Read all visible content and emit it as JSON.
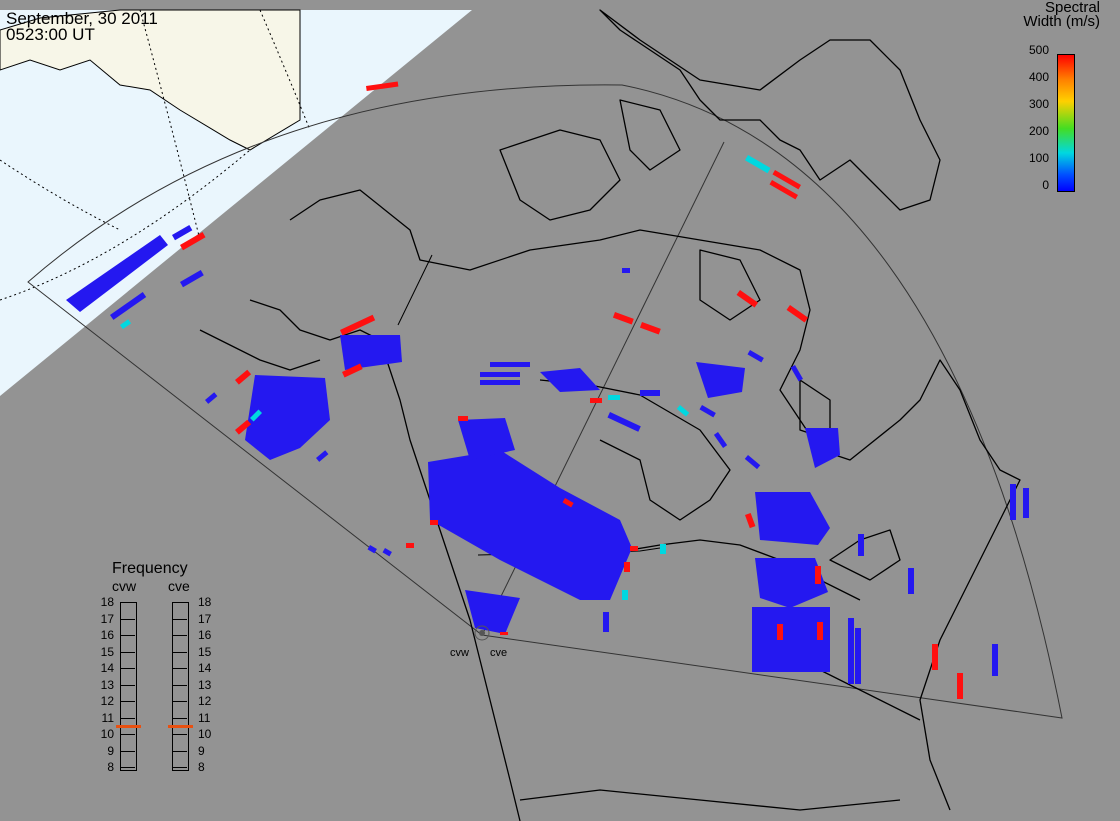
{
  "header": {
    "date": "September, 30 2011",
    "time": "0523:00 UT"
  },
  "colorbar": {
    "title_line1": "Spectral",
    "title_line2": "Width (m/s)",
    "ticks": [
      "500",
      "400",
      "300",
      "200",
      "100",
      "0"
    ],
    "range": [
      0,
      500
    ],
    "colors": [
      "#0000ff",
      "#00d8e0",
      "#44dd22",
      "#ffd000",
      "#ff8000",
      "#ff0000"
    ]
  },
  "frequency": {
    "title": "Frequency",
    "radars": [
      {
        "name": "cvw",
        "value_mhz": 10.5
      },
      {
        "name": "cve",
        "value_mhz": 10.5
      }
    ],
    "ticks": [
      "18",
      "17",
      "16",
      "15",
      "14",
      "13",
      "12",
      "11",
      "10",
      "9",
      "8"
    ],
    "range": [
      8,
      18
    ]
  },
  "sites": {
    "west": "cvw",
    "east": "cve"
  },
  "colors": {
    "background": "#939393",
    "ocean_day": "#eaf6fd",
    "land_day": "#f7f6e8",
    "low_width": "#2418f0",
    "high_width": "#ff1010",
    "mid_width": "#00d8e0"
  }
}
